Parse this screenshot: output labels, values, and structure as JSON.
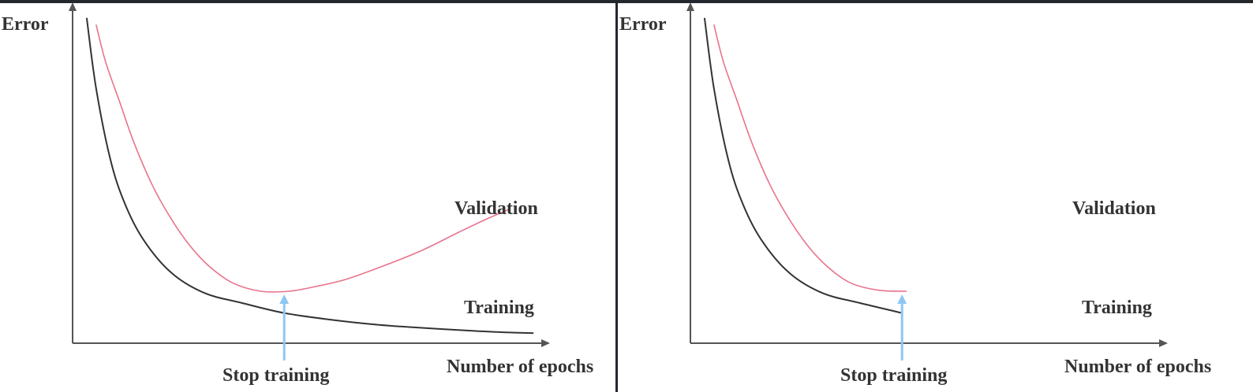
{
  "chart_data": [
    {
      "type": "line",
      "ylabel": "Error",
      "xlabel": "Number of epochs",
      "grid": false,
      "annotation": "Stop training",
      "stop_at": 0.45,
      "colors": {
        "Training": "#333333",
        "Validation": "#e8748c",
        "stop_marker": "#8ec8f2"
      },
      "series": [
        {
          "name": "Training",
          "points": [
            [
              0.03,
              0.97
            ],
            [
              0.05,
              0.76
            ],
            [
              0.08,
              0.55
            ],
            [
              0.11,
              0.42
            ],
            [
              0.15,
              0.31
            ],
            [
              0.21,
              0.21
            ],
            [
              0.28,
              0.15
            ],
            [
              0.36,
              0.12
            ],
            [
              0.45,
              0.09
            ],
            [
              0.55,
              0.07
            ],
            [
              0.65,
              0.055
            ],
            [
              0.75,
              0.045
            ],
            [
              0.85,
              0.037
            ],
            [
              0.93,
              0.032
            ],
            [
              0.98,
              0.03
            ]
          ]
        },
        {
          "name": "Validation",
          "points": [
            [
              0.05,
              0.95
            ],
            [
              0.07,
              0.84
            ],
            [
              0.1,
              0.72
            ],
            [
              0.13,
              0.6
            ],
            [
              0.17,
              0.47
            ],
            [
              0.21,
              0.37
            ],
            [
              0.25,
              0.29
            ],
            [
              0.29,
              0.23
            ],
            [
              0.34,
              0.18
            ],
            [
              0.4,
              0.155
            ],
            [
              0.46,
              0.155
            ],
            [
              0.52,
              0.17
            ],
            [
              0.58,
              0.19
            ],
            [
              0.66,
              0.23
            ],
            [
              0.74,
              0.275
            ],
            [
              0.82,
              0.33
            ],
            [
              0.88,
              0.37
            ],
            [
              0.93,
              0.4
            ]
          ]
        }
      ]
    },
    {
      "type": "line",
      "ylabel": "Error",
      "xlabel": "Number of epochs",
      "grid": false,
      "annotation": "Stop training",
      "stop_at": 0.45,
      "colors": {
        "Training": "#333333",
        "Validation": "#e8748c",
        "stop_marker": "#8ec8f2"
      },
      "series": [
        {
          "name": "Training",
          "points": [
            [
              0.03,
              0.97
            ],
            [
              0.05,
              0.76
            ],
            [
              0.08,
              0.55
            ],
            [
              0.11,
              0.42
            ],
            [
              0.15,
              0.31
            ],
            [
              0.21,
              0.21
            ],
            [
              0.28,
              0.15
            ],
            [
              0.36,
              0.12
            ],
            [
              0.45,
              0.09
            ]
          ]
        },
        {
          "name": "Validation",
          "points": [
            [
              0.05,
              0.95
            ],
            [
              0.07,
              0.84
            ],
            [
              0.1,
              0.72
            ],
            [
              0.13,
              0.6
            ],
            [
              0.17,
              0.47
            ],
            [
              0.21,
              0.37
            ],
            [
              0.25,
              0.29
            ],
            [
              0.29,
              0.23
            ],
            [
              0.34,
              0.18
            ],
            [
              0.4,
              0.158
            ],
            [
              0.46,
              0.155
            ]
          ]
        }
      ]
    }
  ]
}
